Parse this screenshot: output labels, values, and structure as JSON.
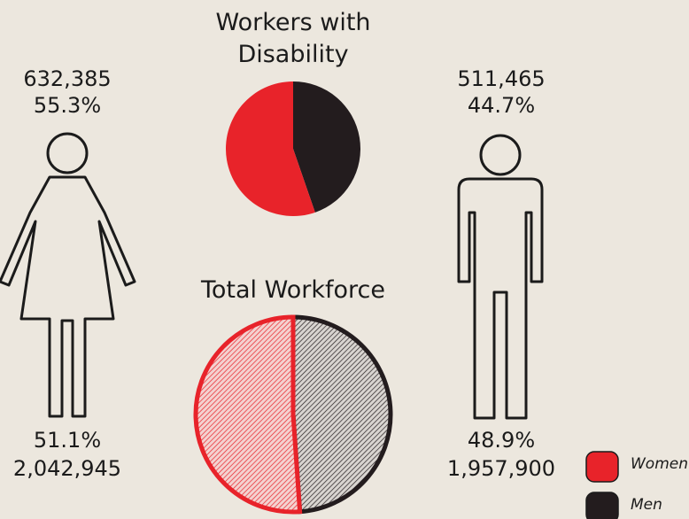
{
  "chart_data": [
    {
      "type": "pie",
      "title": "Workers with Disability",
      "categories": [
        "Women",
        "Men"
      ],
      "colors": [
        "#e8232a",
        "#231c1e"
      ],
      "values": [
        55.3,
        44.7
      ],
      "value_labels": [
        "55.3%",
        "44.7%"
      ],
      "count_labels": [
        "632,385",
        "511,465"
      ],
      "hatched": false
    },
    {
      "type": "pie",
      "title": "Total Workforce",
      "categories": [
        "Women",
        "Men"
      ],
      "colors": [
        "#e8232a",
        "#231c1e"
      ],
      "values": [
        51.1,
        48.9
      ],
      "value_labels": [
        "51.1%",
        "48.9%"
      ],
      "count_labels": [
        "2,042,945",
        "1,957,900"
      ],
      "hatched": true
    }
  ]
}
